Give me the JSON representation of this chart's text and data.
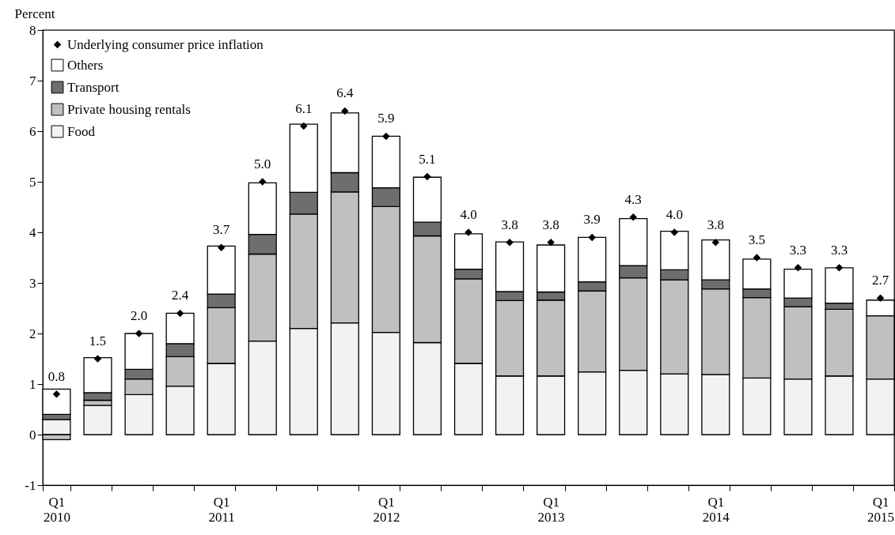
{
  "chart_data": {
    "type": "bar",
    "stacked": true,
    "ylabel": "Percent",
    "categories": [
      "Q1 2010",
      null,
      null,
      null,
      "Q1 2011",
      null,
      null,
      null,
      "Q1 2012",
      null,
      null,
      null,
      "Q1 2013",
      null,
      null,
      null,
      "Q1 2014",
      null,
      null,
      null,
      "Q1 2015"
    ],
    "ylim": [
      -1,
      8
    ],
    "yticks": [
      -1,
      0,
      1,
      2,
      3,
      4,
      5,
      6,
      7,
      8
    ],
    "grid": false,
    "legend": "top left",
    "marker": "diamond",
    "series": [
      {
        "name": "Food",
        "type": "bar",
        "color": "#f2f2f2",
        "values": [
          0.3,
          0.58,
          0.79,
          0.96,
          1.41,
          1.85,
          2.1,
          2.21,
          2.02,
          1.82,
          1.41,
          1.16,
          1.16,
          1.24,
          1.27,
          1.2,
          1.19,
          1.12,
          1.1,
          1.16,
          1.1
        ]
      },
      {
        "name": "Private housing rentals",
        "type": "bar",
        "color": "#c0c0c0",
        "values": [
          -0.1,
          0.1,
          0.31,
          0.58,
          1.1,
          1.72,
          2.26,
          2.59,
          2.49,
          2.11,
          1.67,
          1.49,
          1.5,
          1.6,
          1.83,
          1.86,
          1.69,
          1.59,
          1.43,
          1.32,
          1.25
        ]
      },
      {
        "name": "Transport",
        "type": "bar",
        "color": "#6e6e6e",
        "values": [
          0.1,
          0.15,
          0.19,
          0.26,
          0.27,
          0.39,
          0.43,
          0.38,
          0.37,
          0.27,
          0.19,
          0.18,
          0.16,
          0.18,
          0.24,
          0.2,
          0.18,
          0.17,
          0.17,
          0.12,
          null
        ]
      },
      {
        "name": "Others",
        "type": "bar",
        "color": "#ffffff",
        "values": [
          0.5,
          0.69,
          0.71,
          0.6,
          0.95,
          1.02,
          1.35,
          1.18,
          1.02,
          0.89,
          0.7,
          0.98,
          0.93,
          0.88,
          0.93,
          0.76,
          0.79,
          0.59,
          0.57,
          0.7,
          0.31
        ]
      },
      {
        "name": "Underlying consumer price inflation",
        "type": "scatter",
        "color": "#000000",
        "values": [
          0.8,
          1.5,
          2.0,
          2.4,
          3.7,
          5.0,
          6.1,
          6.4,
          5.9,
          5.1,
          4.0,
          3.8,
          3.8,
          3.9,
          4.3,
          4.0,
          3.8,
          3.5,
          3.3,
          3.3,
          2.7
        ],
        "value_labels": [
          "0.8",
          "1.5",
          "2.0",
          "2.4",
          "3.7",
          "5.0",
          "6.1",
          "6.4",
          "5.9",
          "5.1",
          "4.0",
          "3.8",
          "3.8",
          "3.9",
          "4.3",
          "4.0",
          "3.8",
          "3.5",
          "3.3",
          "3.3",
          "2.7"
        ]
      }
    ]
  }
}
